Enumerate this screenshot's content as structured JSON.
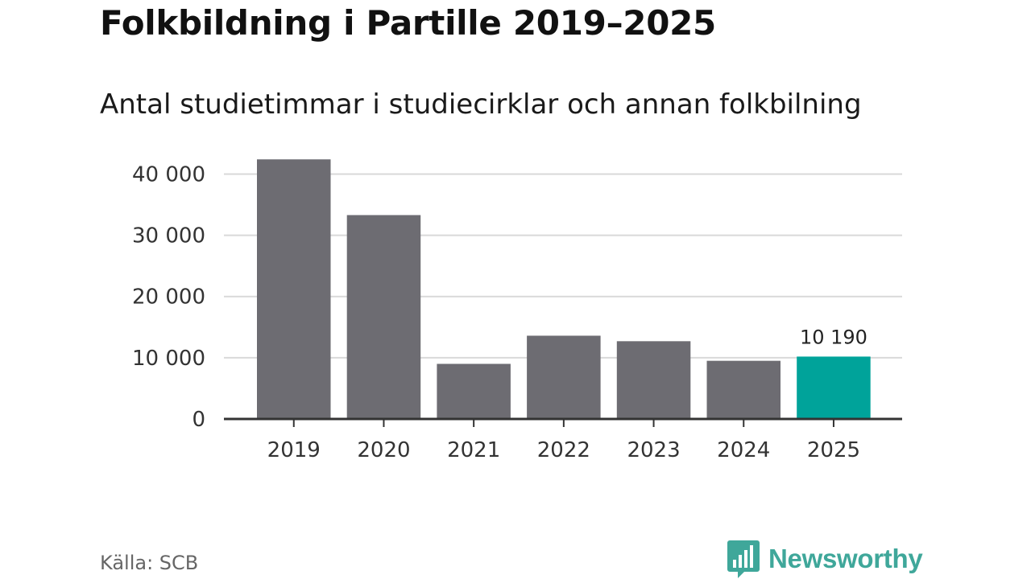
{
  "title": "Folkbildning i Partille 2019–2025",
  "subtitle": "Antal studietimmar i studiecirklar och annan folkbilning",
  "source": "Källa: SCB",
  "brand": {
    "name": "Newsworthy",
    "logo_icon": "newsworthy-bar-chart-icon"
  },
  "colors": {
    "bar": "#6d6c72",
    "highlight": "#00a39a",
    "grid": "#d9d9d9",
    "axis": "#333333",
    "brand": "#3fa79a"
  },
  "chart_data": {
    "type": "bar",
    "title": "Folkbildning i Partille 2019–2025",
    "subtitle": "Antal studietimmar i studiecirklar och annan folkbilning",
    "categories": [
      "2019",
      "2020",
      "2021",
      "2022",
      "2023",
      "2024",
      "2025"
    ],
    "values": [
      42400,
      33300,
      9000,
      13600,
      12700,
      9500,
      10190
    ],
    "highlight_index": 6,
    "data_labels": {
      "6": "10 190"
    },
    "ylim": [
      0,
      44000
    ],
    "yticks": [
      0,
      10000,
      20000,
      30000,
      40000
    ],
    "ytick_labels": [
      "0",
      "10 000",
      "20 000",
      "30 000",
      "40 000"
    ],
    "xlabel": "",
    "ylabel": "",
    "grid": true,
    "legend": "none"
  }
}
